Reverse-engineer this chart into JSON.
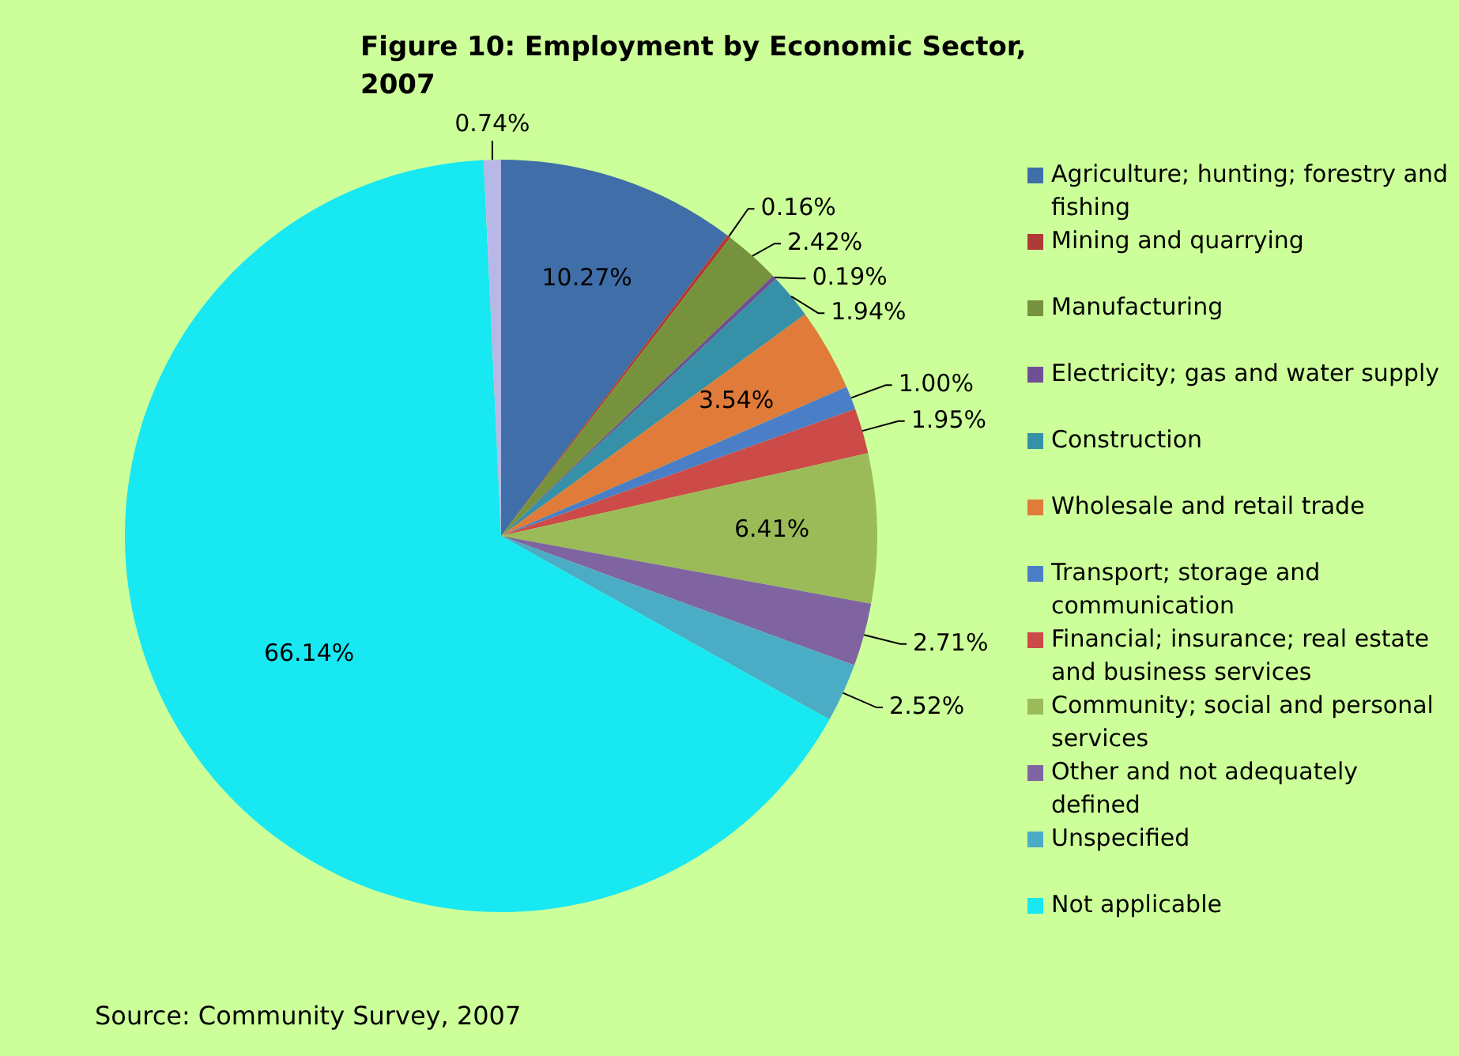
{
  "chart_data": {
    "type": "pie",
    "title": "Figure 10: Employment by Economic Sector, 2007",
    "categories": [
      "Agriculture; hunting; forestry and fishing",
      "Mining and quarrying",
      "Manufacturing",
      "Electricity; gas and water supply",
      "Construction",
      "Wholesale and retail trade",
      "Transport; storage and communication",
      "Financial; insurance; real estate and business services",
      "Community; social and personal services",
      "Other and not adequately defined",
      "Unspecified",
      "Not applicable",
      null
    ],
    "values": [
      10.27,
      0.16,
      2.42,
      0.19,
      1.94,
      3.54,
      1.0,
      1.95,
      6.41,
      2.71,
      2.52,
      66.14,
      0.74
    ],
    "value_labels": [
      "10.27%",
      "0.16%",
      "2.42%",
      "0.19%",
      "1.94%",
      "3.54%",
      "1.00%",
      "1.95%",
      "6.41%",
      "2.71%",
      "2.52%",
      "66.14%",
      "0.74%"
    ],
    "colors": [
      "#3f6ea8",
      "#b03a38",
      "#76923c",
      "#6f4f96",
      "#3690a8",
      "#e07b39",
      "#4a7fc8",
      "#cc4a48",
      "#9bbb59",
      "#8064a2",
      "#4bacc6",
      "#17e8f2",
      "#b8b8e8"
    ],
    "legend": "right",
    "annotations": [
      "Source: Community Survey, 2007"
    ]
  }
}
